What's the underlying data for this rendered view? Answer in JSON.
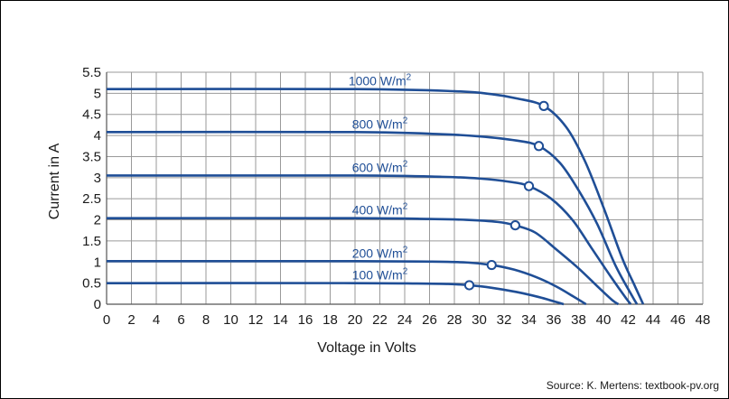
{
  "chart_data": {
    "type": "line",
    "xlabel": "Voltage in Volts",
    "ylabel": "Current in A",
    "xlim": [
      0,
      48
    ],
    "ylim": [
      0,
      5.5
    ],
    "x_ticks": [
      "0",
      "2",
      "4",
      "6",
      "8",
      "10",
      "12",
      "14",
      "16",
      "18",
      "20",
      "22",
      "24",
      "26",
      "28",
      "30",
      "32",
      "34",
      "36",
      "38",
      "40",
      "42",
      "44",
      "46",
      "48"
    ],
    "y_ticks": [
      "0",
      "0.5",
      "1",
      "1.5",
      "2",
      "2.5",
      "3",
      "3.5",
      "4",
      "4.5",
      "5",
      "5.5"
    ],
    "grid": true,
    "colors": {
      "curve": "#1f4e96",
      "grid": "#9a9a9a"
    },
    "series": [
      {
        "label_text": "1000 W/m",
        "label_sup": "2",
        "x": [
          0,
          20,
          28,
          31,
          33,
          35.2,
          37,
          38.5,
          40,
          41.5,
          42.5,
          43.2
        ],
        "y": [
          5.1,
          5.1,
          5.05,
          4.98,
          4.88,
          4.7,
          4.2,
          3.4,
          2.3,
          1.1,
          0.45,
          0
        ],
        "mpp": [
          35.2,
          4.7
        ]
      },
      {
        "label_text": "800 W/m",
        "label_sup": "2",
        "x": [
          0,
          20,
          27,
          30,
          33,
          34.8,
          36.5,
          38,
          39.5,
          41,
          42.3,
          42.7
        ],
        "y": [
          4.08,
          4.08,
          4.03,
          3.98,
          3.88,
          3.75,
          3.35,
          2.7,
          1.9,
          0.9,
          0.2,
          0
        ],
        "mpp": [
          34.8,
          3.75
        ]
      },
      {
        "label_text": "600 W/m",
        "label_sup": "2",
        "x": [
          0,
          20,
          27,
          30,
          32.5,
          34,
          35.8,
          37.5,
          39,
          40.6,
          41.8,
          42.2
        ],
        "y": [
          3.05,
          3.05,
          3.02,
          2.98,
          2.9,
          2.8,
          2.5,
          2.0,
          1.35,
          0.65,
          0.15,
          0
        ],
        "mpp": [
          34,
          2.8
        ]
      },
      {
        "label_text": "400 W/m",
        "label_sup": "2",
        "x": [
          0,
          20,
          26,
          29,
          31.5,
          32.9,
          34.5,
          36.2,
          38,
          39.6,
          40.7,
          41.2
        ],
        "y": [
          2.04,
          2.04,
          2.02,
          2.0,
          1.95,
          1.87,
          1.7,
          1.3,
          0.85,
          0.4,
          0.1,
          0
        ],
        "mpp": [
          32.9,
          1.87
        ]
      },
      {
        "label_text": "200 W/m",
        "label_sup": "2",
        "x": [
          0,
          20,
          26,
          29,
          31,
          32.8,
          34.6,
          36.2,
          37.6,
          38.6
        ],
        "y": [
          1.02,
          1.02,
          1.01,
          0.99,
          0.93,
          0.82,
          0.64,
          0.42,
          0.18,
          0
        ],
        "mpp": [
          31,
          0.93
        ]
      },
      {
        "label_text": "100 W/m",
        "label_sup": "2",
        "x": [
          0,
          20,
          25,
          27.5,
          29.2,
          31,
          33,
          34.8,
          36,
          36.8
        ],
        "y": [
          0.5,
          0.5,
          0.49,
          0.48,
          0.45,
          0.39,
          0.29,
          0.17,
          0.07,
          0
        ],
        "mpp": [
          29.2,
          0.45
        ]
      }
    ]
  },
  "source": "Source: K. Mertens: textbook-pv.org"
}
